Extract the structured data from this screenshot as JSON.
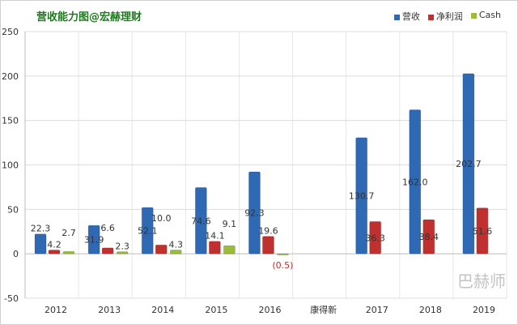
{
  "chart_data": {
    "type": "bar",
    "title": "营收能力图@宏赫理财",
    "categories": [
      "2012",
      "2013",
      "2014",
      "2015",
      "2016",
      "康得新",
      "2017",
      "2018",
      "2019"
    ],
    "series": [
      {
        "name": "营收",
        "color": "#2f69b3",
        "values": [
          22.3,
          31.9,
          52.1,
          74.6,
          92.3,
          null,
          130.7,
          162.0,
          202.7
        ],
        "labels": [
          "22.3",
          "31.9",
          "52.1",
          "74.6",
          "92.3",
          "",
          "130.7",
          "162.0",
          "202.7"
        ]
      },
      {
        "name": "净利润",
        "color": "#c0302e",
        "values": [
          4.2,
          6.6,
          10.0,
          14.1,
          19.6,
          null,
          36.3,
          38.4,
          51.6
        ],
        "labels": [
          "4.2",
          "6.6",
          "10.0",
          "14.1",
          "19.6",
          "",
          "36.3",
          "38.4",
          "51.6"
        ]
      },
      {
        "name": "Cash",
        "color": "#9bbb3b",
        "values": [
          2.7,
          2.3,
          4.3,
          9.1,
          -0.5,
          null,
          null,
          null,
          null
        ],
        "labels": [
          "2.7",
          "2.3",
          "4.3",
          "9.1",
          "(0.5)",
          "",
          "",
          "",
          ""
        ]
      }
    ],
    "ylim": [
      -50,
      250
    ],
    "yticks": [
      -50,
      0,
      50,
      100,
      150,
      200,
      250
    ],
    "grid": true,
    "legend": "top-right"
  },
  "watermark": "巴赫师"
}
